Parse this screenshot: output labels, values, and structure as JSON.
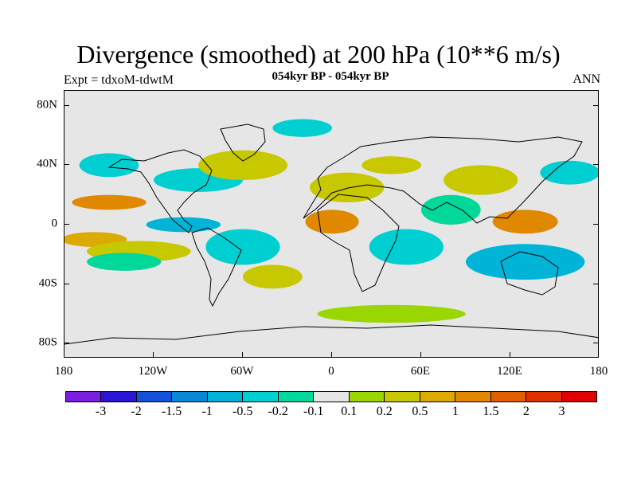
{
  "title": "Divergence (smoothed) at 200 hPa (10**6 m/s)",
  "subtitle": "054kyr BP - 054kyr BP",
  "experiment": "Expt = tdxoM-tdwtM",
  "season": "ANN",
  "chart_data": {
    "type": "contour-map",
    "projection": "cylindrical-equidistant",
    "title": "Divergence (smoothed) at 200 hPa (10**6 m/s)",
    "xlim": [
      -180,
      180
    ],
    "ylim": [
      -90,
      90
    ],
    "lat_ticks": [
      {
        "value": 80,
        "label": "80N"
      },
      {
        "value": 40,
        "label": "40N"
      },
      {
        "value": 0,
        "label": "0"
      },
      {
        "value": -40,
        "label": "40S"
      },
      {
        "value": -80,
        "label": "80S"
      }
    ],
    "lon_ticks": [
      {
        "value": -180,
        "label": "180"
      },
      {
        "value": -120,
        "label": "120W"
      },
      {
        "value": -60,
        "label": "60W"
      },
      {
        "value": 0,
        "label": "0"
      },
      {
        "value": 60,
        "label": "60E"
      },
      {
        "value": 120,
        "label": "120E"
      },
      {
        "value": 180,
        "label": "180"
      }
    ],
    "contour_levels": [
      "-3",
      "-2",
      "-1.5",
      "-1",
      "-0.5",
      "-0.2",
      "-0.1",
      "0.1",
      "0.2",
      "0.5",
      "1",
      "1.5",
      "2",
      "3"
    ],
    "colors": [
      "#7a1fe0",
      "#2a14d6",
      "#1450d8",
      "#0a88d8",
      "#00b4d8",
      "#00cfd2",
      "#00d89a",
      "#e6e6e6",
      "#9ad600",
      "#c8c800",
      "#dcaa00",
      "#e08800",
      "#e06000",
      "#e03000",
      "#e00000"
    ],
    "background_color": "#e6e6e6",
    "anomaly_regions": [
      {
        "lon": -150,
        "lat": 15,
        "rx": 25,
        "ry": 5,
        "level": 11
      },
      {
        "lon": -160,
        "lat": -10,
        "rx": 22,
        "ry": 5,
        "level": 10
      },
      {
        "lon": -130,
        "lat": -18,
        "rx": 35,
        "ry": 7,
        "level": 9
      },
      {
        "lon": -140,
        "lat": -25,
        "rx": 25,
        "ry": 6,
        "level": 6
      },
      {
        "lon": -100,
        "lat": 0,
        "rx": 25,
        "ry": 5,
        "level": 4
      },
      {
        "lon": -90,
        "lat": 30,
        "rx": 30,
        "ry": 8,
        "level": 5
      },
      {
        "lon": -60,
        "lat": 40,
        "rx": 30,
        "ry": 10,
        "level": 9
      },
      {
        "lon": -150,
        "lat": 40,
        "rx": 20,
        "ry": 8,
        "level": 5
      },
      {
        "lon": -60,
        "lat": -15,
        "rx": 25,
        "ry": 12,
        "level": 5
      },
      {
        "lon": -40,
        "lat": -35,
        "rx": 20,
        "ry": 8,
        "level": 9
      },
      {
        "lon": 0,
        "lat": 2,
        "rx": 18,
        "ry": 8,
        "level": 11
      },
      {
        "lon": 10,
        "lat": 25,
        "rx": 25,
        "ry": 10,
        "level": 9
      },
      {
        "lon": 40,
        "lat": 40,
        "rx": 20,
        "ry": 6,
        "level": 9
      },
      {
        "lon": 50,
        "lat": -15,
        "rx": 25,
        "ry": 12,
        "level": 5
      },
      {
        "lon": 80,
        "lat": 10,
        "rx": 20,
        "ry": 10,
        "level": 6
      },
      {
        "lon": 100,
        "lat": 30,
        "rx": 25,
        "ry": 10,
        "level": 9
      },
      {
        "lon": 130,
        "lat": 2,
        "rx": 22,
        "ry": 8,
        "level": 11
      },
      {
        "lon": 130,
        "lat": -25,
        "rx": 40,
        "ry": 12,
        "level": 4
      },
      {
        "lon": 160,
        "lat": 35,
        "rx": 20,
        "ry": 8,
        "level": 5
      },
      {
        "lon": -20,
        "lat": 65,
        "rx": 20,
        "ry": 6,
        "level": 5
      },
      {
        "lon": 40,
        "lat": -60,
        "rx": 50,
        "ry": 6,
        "level": 8
      }
    ]
  }
}
